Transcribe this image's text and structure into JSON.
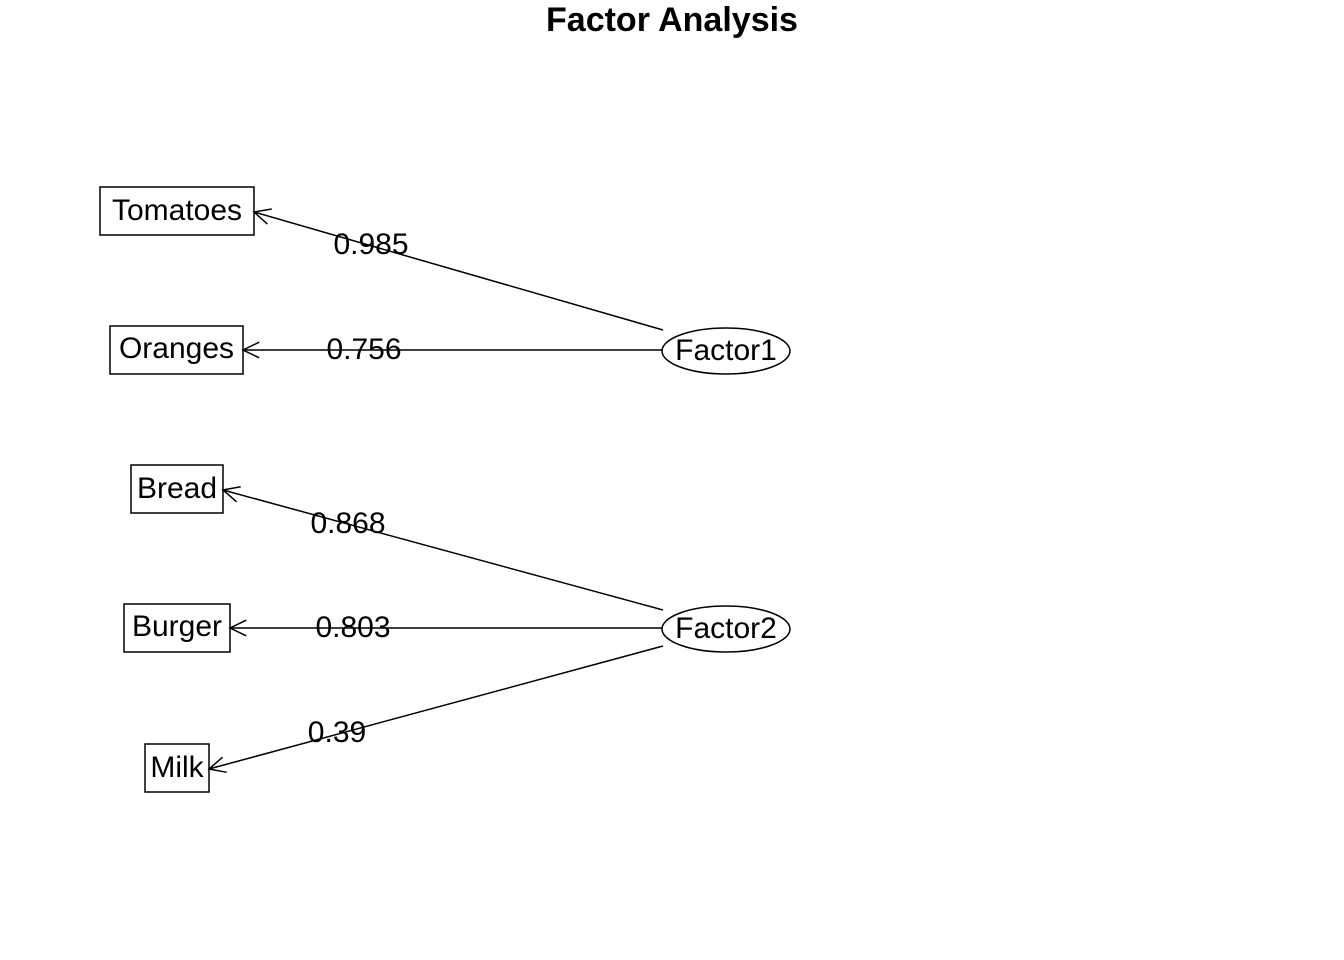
{
  "title": "Factor Analysis",
  "factors": [
    {
      "label": "Factor1",
      "variables": [
        {
          "label": "Tomatoes",
          "loading": "0.985"
        },
        {
          "label": "Oranges",
          "loading": "0.756"
        }
      ]
    },
    {
      "label": "Factor2",
      "variables": [
        {
          "label": "Bread",
          "loading": "0.868"
        },
        {
          "label": "Burger",
          "loading": "0.803"
        },
        {
          "label": "Milk",
          "loading": "0.39"
        }
      ]
    }
  ]
}
